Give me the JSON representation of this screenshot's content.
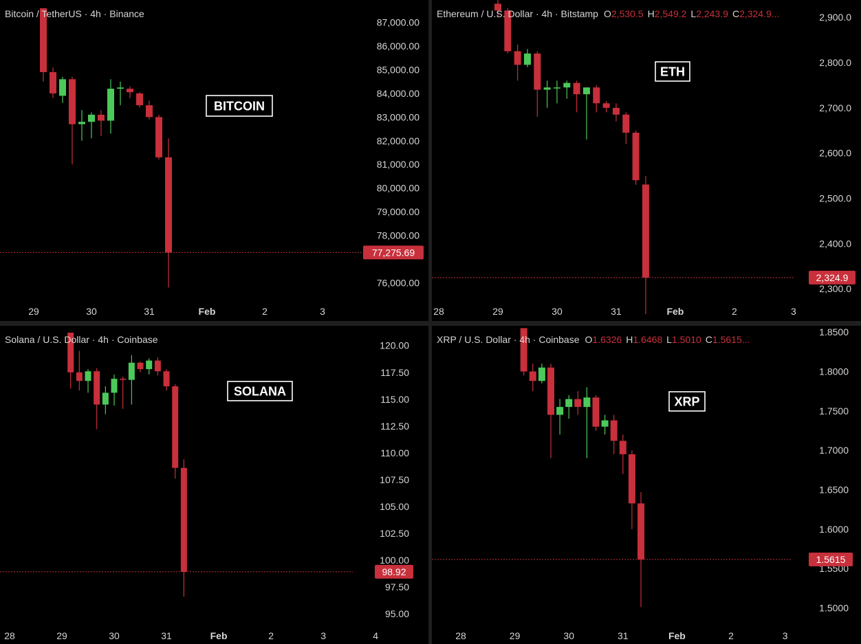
{
  "colors": {
    "up": "#4cc95a",
    "down": "#c8303b",
    "axis_text": "#d6d6d6",
    "title_text": "#d6d6d6",
    "badge": "#c8303b"
  },
  "chart_data": [
    {
      "type": "candlestick",
      "title": "Bitcoin / TetherUS · 4h · Binance",
      "ohlc_header": null,
      "label": "BITCOIN",
      "last_price": 77275.69,
      "last_price_label": "77,275.69",
      "ylim": [
        75400,
        87600
      ],
      "y_ticks": [
        {
          "value": 87000,
          "label": "87,000.00"
        },
        {
          "value": 86000,
          "label": "86,000.00"
        },
        {
          "value": 85000,
          "label": "85,000.00"
        },
        {
          "value": 84000,
          "label": "84,000.00"
        },
        {
          "value": 83000,
          "label": "83,000.00"
        },
        {
          "value": 82000,
          "label": "82,000.00"
        },
        {
          "value": 81000,
          "label": "81,000.00"
        },
        {
          "value": 80000,
          "label": "80,000.00"
        },
        {
          "value": 79000,
          "label": "79,000.00"
        },
        {
          "value": 78000,
          "label": "78,000.00"
        },
        {
          "value": 76000,
          "label": "76,000.00"
        }
      ],
      "x_ticks": [
        {
          "t": 0,
          "label": "29"
        },
        {
          "t": 6,
          "label": "30"
        },
        {
          "t": 12,
          "label": "31"
        },
        {
          "t": 18,
          "label": "Feb"
        },
        {
          "t": 24,
          "label": "2"
        },
        {
          "t": 30,
          "label": "3"
        }
      ],
      "candles": [
        {
          "t": 1,
          "o": 87600,
          "h": 87600,
          "l": 84500,
          "c": 84900
        },
        {
          "t": 2,
          "o": 84900,
          "h": 85100,
          "l": 83800,
          "c": 84000
        },
        {
          "t": 3,
          "o": 83900,
          "h": 84700,
          "l": 83600,
          "c": 84600
        },
        {
          "t": 4,
          "o": 84600,
          "h": 84700,
          "l": 81000,
          "c": 82700
        },
        {
          "t": 5,
          "o": 82700,
          "h": 83300,
          "l": 82000,
          "c": 82800
        },
        {
          "t": 6,
          "o": 82800,
          "h": 83200,
          "l": 82100,
          "c": 83100
        },
        {
          "t": 7,
          "o": 83100,
          "h": 83300,
          "l": 82200,
          "c": 82850
        },
        {
          "t": 8,
          "o": 82850,
          "h": 84600,
          "l": 82300,
          "c": 84200
        },
        {
          "t": 9,
          "o": 84200,
          "h": 84500,
          "l": 83500,
          "c": 84250
        },
        {
          "t": 10,
          "o": 84200,
          "h": 84300,
          "l": 83800,
          "c": 84050
        },
        {
          "t": 11,
          "o": 84000,
          "h": 84050,
          "l": 83400,
          "c": 83500
        },
        {
          "t": 12,
          "o": 83500,
          "h": 83700,
          "l": 82900,
          "c": 83000
        },
        {
          "t": 13,
          "o": 83000,
          "h": 83100,
          "l": 81200,
          "c": 81300
        },
        {
          "t": 14,
          "o": 81300,
          "h": 82100,
          "l": 75800,
          "c": 77275.69
        }
      ]
    },
    {
      "type": "candlestick",
      "title": "Ethereum / U.S. Dollar · 4h · Bitstamp",
      "ohlc_header": [
        {
          "key": "O",
          "value": "2,530.5"
        },
        {
          "key": "H",
          "value": "2,549.2"
        },
        {
          "key": "L",
          "value": "2,243.9"
        },
        {
          "key": "C",
          "value": "2,324.9..."
        }
      ],
      "label": "ETH",
      "last_price": 2324.9,
      "last_price_label": "2,324.9",
      "ylim": [
        2270,
        2920
      ],
      "y_ticks": [
        {
          "value": 2900,
          "label": "2,900.0"
        },
        {
          "value": 2800,
          "label": "2,800.0"
        },
        {
          "value": 2700,
          "label": "2,700.0"
        },
        {
          "value": 2600,
          "label": "2,600.0"
        },
        {
          "value": 2500,
          "label": "2,500.0"
        },
        {
          "value": 2400,
          "label": "2,400.0"
        },
        {
          "value": 2300,
          "label": "2,300.0"
        }
      ],
      "x_ticks": [
        {
          "t": 0,
          "label": "28"
        },
        {
          "t": 6,
          "label": "29"
        },
        {
          "t": 12,
          "label": "30"
        },
        {
          "t": 18,
          "label": "31"
        },
        {
          "t": 24,
          "label": "Feb"
        },
        {
          "t": 30,
          "label": "2"
        },
        {
          "t": 36,
          "label": "3"
        }
      ],
      "candles": [
        {
          "t": 6,
          "o": 2930,
          "h": 2940,
          "l": 2900,
          "c": 2915
        },
        {
          "t": 7,
          "o": 2915,
          "h": 2920,
          "l": 2820,
          "c": 2825
        },
        {
          "t": 8,
          "o": 2825,
          "h": 2840,
          "l": 2760,
          "c": 2795
        },
        {
          "t": 9,
          "o": 2795,
          "h": 2830,
          "l": 2790,
          "c": 2820
        },
        {
          "t": 10,
          "o": 2820,
          "h": 2825,
          "l": 2680,
          "c": 2740
        },
        {
          "t": 11,
          "o": 2740,
          "h": 2760,
          "l": 2700,
          "c": 2745
        },
        {
          "t": 12,
          "o": 2745,
          "h": 2760,
          "l": 2710,
          "c": 2745
        },
        {
          "t": 13,
          "o": 2745,
          "h": 2760,
          "l": 2720,
          "c": 2755
        },
        {
          "t": 14,
          "o": 2755,
          "h": 2760,
          "l": 2690,
          "c": 2730
        },
        {
          "t": 15,
          "o": 2730,
          "h": 2745,
          "l": 2630,
          "c": 2745
        },
        {
          "t": 16,
          "o": 2745,
          "h": 2750,
          "l": 2690,
          "c": 2710
        },
        {
          "t": 17,
          "o": 2710,
          "h": 2715,
          "l": 2690,
          "c": 2700
        },
        {
          "t": 18,
          "o": 2700,
          "h": 2710,
          "l": 2670,
          "c": 2685
        },
        {
          "t": 19,
          "o": 2685,
          "h": 2690,
          "l": 2620,
          "c": 2645
        },
        {
          "t": 20,
          "o": 2645,
          "h": 2650,
          "l": 2530,
          "c": 2540
        },
        {
          "t": 21,
          "o": 2530.5,
          "h": 2549.2,
          "l": 2243.9,
          "c": 2324.9
        }
      ]
    },
    {
      "type": "candlestick",
      "title": "Solana / U.S. Dollar · 4h · Coinbase",
      "ohlc_header": null,
      "label": "SOLANA",
      "last_price": 98.92,
      "last_price_label": "98.92",
      "ylim": [
        94.3,
        121.2
      ],
      "y_ticks": [
        {
          "value": 120,
          "label": "120.00"
        },
        {
          "value": 117.5,
          "label": "117.50"
        },
        {
          "value": 115,
          "label": "115.00"
        },
        {
          "value": 112.5,
          "label": "112.50"
        },
        {
          "value": 110,
          "label": "110.00"
        },
        {
          "value": 107.5,
          "label": "107.50"
        },
        {
          "value": 105,
          "label": "105.00"
        },
        {
          "value": 102.5,
          "label": "102.50"
        },
        {
          "value": 100,
          "label": "100.00"
        },
        {
          "value": 97.5,
          "label": "97.50"
        },
        {
          "value": 95,
          "label": "95.00"
        }
      ],
      "x_ticks": [
        {
          "t": 0,
          "label": "28"
        },
        {
          "t": 6,
          "label": "29"
        },
        {
          "t": 12,
          "label": "30"
        },
        {
          "t": 18,
          "label": "31"
        },
        {
          "t": 24,
          "label": "Feb"
        },
        {
          "t": 30,
          "label": "2"
        },
        {
          "t": 36,
          "label": "3"
        },
        {
          "t": 42,
          "label": "4"
        }
      ],
      "candles": [
        {
          "t": 7,
          "o": 121.2,
          "h": 121.2,
          "l": 116,
          "c": 117.5
        },
        {
          "t": 8,
          "o": 117.5,
          "h": 119.5,
          "l": 115.8,
          "c": 116.7
        },
        {
          "t": 9,
          "o": 116.7,
          "h": 117.8,
          "l": 115.6,
          "c": 117.6
        },
        {
          "t": 10,
          "o": 117.6,
          "h": 117.9,
          "l": 112.2,
          "c": 114.5
        },
        {
          "t": 11,
          "o": 114.5,
          "h": 116.2,
          "l": 113.6,
          "c": 115.6
        },
        {
          "t": 12,
          "o": 115.6,
          "h": 117.3,
          "l": 114.4,
          "c": 116.9
        },
        {
          "t": 13,
          "o": 116.9,
          "h": 117.1,
          "l": 114.1,
          "c": 116.8
        },
        {
          "t": 14,
          "o": 116.8,
          "h": 119.1,
          "l": 114.5,
          "c": 118.4
        },
        {
          "t": 15,
          "o": 118.4,
          "h": 118.5,
          "l": 117.5,
          "c": 117.8
        },
        {
          "t": 16,
          "o": 117.8,
          "h": 118.8,
          "l": 117.3,
          "c": 118.6
        },
        {
          "t": 17,
          "o": 118.6,
          "h": 118.9,
          "l": 117.2,
          "c": 117.6
        },
        {
          "t": 18,
          "o": 117.6,
          "h": 117.8,
          "l": 115.8,
          "c": 116.2
        },
        {
          "t": 19,
          "o": 116.2,
          "h": 116.4,
          "l": 107.6,
          "c": 108.6
        },
        {
          "t": 20,
          "o": 108.6,
          "h": 109.4,
          "l": 96.6,
          "c": 98.92
        }
      ]
    },
    {
      "type": "candlestick",
      "title": "XRP / U.S. Dollar · 4h · Coinbase",
      "ohlc_header": [
        {
          "key": "O",
          "value": "1.6326"
        },
        {
          "key": "H",
          "value": "1.6468"
        },
        {
          "key": "L",
          "value": "1.5010"
        },
        {
          "key": "C",
          "value": "1.5615..."
        }
      ],
      "label": "XRP",
      "last_price": 1.5615,
      "last_price_label": "1.5615",
      "ylim": [
        1.4865,
        1.8545
      ],
      "y_ticks": [
        {
          "value": 1.85,
          "label": "1.8500"
        },
        {
          "value": 1.8,
          "label": "1.8000"
        },
        {
          "value": 1.75,
          "label": "1.7500"
        },
        {
          "value": 1.7,
          "label": "1.7000"
        },
        {
          "value": 1.65,
          "label": "1.6500"
        },
        {
          "value": 1.6,
          "label": "1.6000"
        },
        {
          "value": 1.55,
          "label": "1.5500"
        },
        {
          "value": 1.5,
          "label": "1.5000"
        }
      ],
      "x_ticks": [
        {
          "t": 0,
          "label": "28"
        },
        {
          "t": 6,
          "label": "29"
        },
        {
          "t": 12,
          "label": "30"
        },
        {
          "t": 18,
          "label": "31"
        },
        {
          "t": 24,
          "label": "Feb"
        },
        {
          "t": 30,
          "label": "2"
        },
        {
          "t": 36,
          "label": "3"
        }
      ],
      "candles": [
        {
          "t": 7,
          "o": 1.855,
          "h": 1.855,
          "l": 1.795,
          "c": 1.8
        },
        {
          "t": 8,
          "o": 1.8,
          "h": 1.81,
          "l": 1.775,
          "c": 1.788
        },
        {
          "t": 9,
          "o": 1.788,
          "h": 1.81,
          "l": 1.785,
          "c": 1.805
        },
        {
          "t": 10,
          "o": 1.805,
          "h": 1.81,
          "l": 1.69,
          "c": 1.745
        },
        {
          "t": 11,
          "o": 1.745,
          "h": 1.765,
          "l": 1.72,
          "c": 1.755
        },
        {
          "t": 12,
          "o": 1.755,
          "h": 1.77,
          "l": 1.74,
          "c": 1.765
        },
        {
          "t": 13,
          "o": 1.765,
          "h": 1.775,
          "l": 1.745,
          "c": 1.755
        },
        {
          "t": 14,
          "o": 1.755,
          "h": 1.78,
          "l": 1.69,
          "c": 1.767
        },
        {
          "t": 15,
          "o": 1.767,
          "h": 1.77,
          "l": 1.725,
          "c": 1.73
        },
        {
          "t": 16,
          "o": 1.73,
          "h": 1.745,
          "l": 1.72,
          "c": 1.738
        },
        {
          "t": 17,
          "o": 1.738,
          "h": 1.745,
          "l": 1.695,
          "c": 1.712
        },
        {
          "t": 18,
          "o": 1.712,
          "h": 1.72,
          "l": 1.67,
          "c": 1.695
        },
        {
          "t": 19,
          "o": 1.695,
          "h": 1.7,
          "l": 1.6,
          "c": 1.6326
        },
        {
          "t": 20,
          "o": 1.6326,
          "h": 1.6468,
          "l": 1.501,
          "c": 1.5615
        }
      ]
    }
  ]
}
